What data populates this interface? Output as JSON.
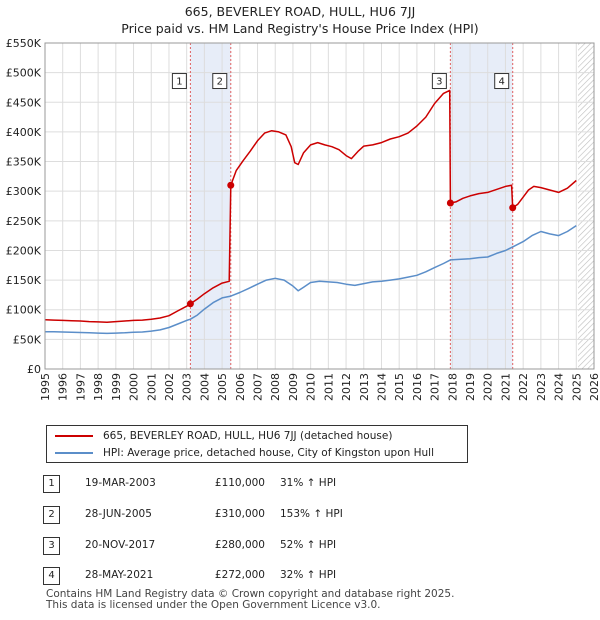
{
  "title_line1": "665, BEVERLEY ROAD, HULL, HU6 7JJ",
  "title_line2": "Price paid vs. HM Land Registry's House Price Index (HPI)",
  "colors": {
    "red": "#cc0000",
    "blue": "#5b8ec9",
    "band": "#dde6f5",
    "grid": "#dddddd"
  },
  "chart_data": {
    "type": "line",
    "x_range": [
      1995,
      2026
    ],
    "y_range": [
      0,
      550000
    ],
    "y_ticks": [
      {
        "v": 0,
        "label": "£0"
      },
      {
        "v": 50000,
        "label": "£50K"
      },
      {
        "v": 100000,
        "label": "£100K"
      },
      {
        "v": 150000,
        "label": "£150K"
      },
      {
        "v": 200000,
        "label": "£200K"
      },
      {
        "v": 250000,
        "label": "£250K"
      },
      {
        "v": 300000,
        "label": "£300K"
      },
      {
        "v": 350000,
        "label": "£350K"
      },
      {
        "v": 400000,
        "label": "£400K"
      },
      {
        "v": 450000,
        "label": "£450K"
      },
      {
        "v": 500000,
        "label": "£500K"
      },
      {
        "v": 550000,
        "label": "£550K"
      }
    ],
    "x_ticks": [
      "1995",
      "1996",
      "1997",
      "1998",
      "1999",
      "2000",
      "2001",
      "2002",
      "2003",
      "2004",
      "2005",
      "2006",
      "2007",
      "2008",
      "2009",
      "2010",
      "2011",
      "2012",
      "2013",
      "2014",
      "2015",
      "2016",
      "2017",
      "2018",
      "2019",
      "2020",
      "2021",
      "2022",
      "2023",
      "2024",
      "2025",
      "2026"
    ],
    "shaded_bands": [
      [
        2003.21,
        2005.49
      ],
      [
        2017.89,
        2021.41
      ]
    ],
    "future_hatch_from": 2025.1,
    "series": [
      {
        "name": "665, BEVERLEY ROAD, HULL, HU6 7JJ (detached house)",
        "color": "#cc0000",
        "points": [
          [
            1995.0,
            83000
          ],
          [
            1995.5,
            82500
          ],
          [
            1996.0,
            82000
          ],
          [
            1996.5,
            81500
          ],
          [
            1997.0,
            81000
          ],
          [
            1997.5,
            80000
          ],
          [
            1998.0,
            79500
          ],
          [
            1998.5,
            79000
          ],
          [
            1999.0,
            80000
          ],
          [
            1999.5,
            81000
          ],
          [
            2000.0,
            82000
          ],
          [
            2000.5,
            82500
          ],
          [
            2001.0,
            84000
          ],
          [
            2001.5,
            86000
          ],
          [
            2002.0,
            90000
          ],
          [
            2002.5,
            98000
          ],
          [
            2003.0,
            106000
          ],
          [
            2003.21,
            110000
          ],
          [
            2003.6,
            118000
          ],
          [
            2004.0,
            127000
          ],
          [
            2004.5,
            137000
          ],
          [
            2005.0,
            145000
          ],
          [
            2005.4,
            148000
          ],
          [
            2005.49,
            310000
          ],
          [
            2005.8,
            335000
          ],
          [
            2006.2,
            352000
          ],
          [
            2006.6,
            368000
          ],
          [
            2007.0,
            385000
          ],
          [
            2007.4,
            398000
          ],
          [
            2007.8,
            402000
          ],
          [
            2008.2,
            400000
          ],
          [
            2008.6,
            395000
          ],
          [
            2008.9,
            375000
          ],
          [
            2009.1,
            348000
          ],
          [
            2009.3,
            345000
          ],
          [
            2009.6,
            365000
          ],
          [
            2010.0,
            378000
          ],
          [
            2010.4,
            382000
          ],
          [
            2010.8,
            378000
          ],
          [
            2011.2,
            375000
          ],
          [
            2011.6,
            370000
          ],
          [
            2012.0,
            360000
          ],
          [
            2012.3,
            355000
          ],
          [
            2012.7,
            368000
          ],
          [
            2013.0,
            376000
          ],
          [
            2013.5,
            378000
          ],
          [
            2014.0,
            382000
          ],
          [
            2014.5,
            388000
          ],
          [
            2015.0,
            392000
          ],
          [
            2015.5,
            398000
          ],
          [
            2016.0,
            410000
          ],
          [
            2016.5,
            425000
          ],
          [
            2017.0,
            448000
          ],
          [
            2017.5,
            465000
          ],
          [
            2017.85,
            470000
          ],
          [
            2017.89,
            280000
          ],
          [
            2018.2,
            282000
          ],
          [
            2018.6,
            288000
          ],
          [
            2019.0,
            292000
          ],
          [
            2019.5,
            296000
          ],
          [
            2020.0,
            298000
          ],
          [
            2020.5,
            303000
          ],
          [
            2021.0,
            308000
          ],
          [
            2021.35,
            310000
          ],
          [
            2021.41,
            272000
          ],
          [
            2021.7,
            278000
          ],
          [
            2022.0,
            290000
          ],
          [
            2022.3,
            302000
          ],
          [
            2022.6,
            308000
          ],
          [
            2023.0,
            306000
          ],
          [
            2023.5,
            302000
          ],
          [
            2024.0,
            298000
          ],
          [
            2024.5,
            305000
          ],
          [
            2025.0,
            318000
          ]
        ]
      },
      {
        "name": "HPI: Average price, detached house, City of Kingston upon Hull",
        "color": "#5b8ec9",
        "points": [
          [
            1995.0,
            63000
          ],
          [
            1995.5,
            62800
          ],
          [
            1996.0,
            62500
          ],
          [
            1996.5,
            62000
          ],
          [
            1997.0,
            61500
          ],
          [
            1997.5,
            61000
          ],
          [
            1998.0,
            60500
          ],
          [
            1998.5,
            60000
          ],
          [
            1999.0,
            60500
          ],
          [
            1999.5,
            61000
          ],
          [
            2000.0,
            62000
          ],
          [
            2000.5,
            62500
          ],
          [
            2001.0,
            64000
          ],
          [
            2001.5,
            66000
          ],
          [
            2002.0,
            70000
          ],
          [
            2002.5,
            76000
          ],
          [
            2003.0,
            82000
          ],
          [
            2003.21,
            84000
          ],
          [
            2003.6,
            91000
          ],
          [
            2004.0,
            101000
          ],
          [
            2004.5,
            112000
          ],
          [
            2005.0,
            120000
          ],
          [
            2005.49,
            123000
          ],
          [
            2006.0,
            129000
          ],
          [
            2006.5,
            136000
          ],
          [
            2007.0,
            143000
          ],
          [
            2007.5,
            150000
          ],
          [
            2008.0,
            153000
          ],
          [
            2008.5,
            150000
          ],
          [
            2009.0,
            140000
          ],
          [
            2009.3,
            132000
          ],
          [
            2009.6,
            138000
          ],
          [
            2010.0,
            146000
          ],
          [
            2010.5,
            148000
          ],
          [
            2011.0,
            147000
          ],
          [
            2011.5,
            146000
          ],
          [
            2012.0,
            143000
          ],
          [
            2012.5,
            141000
          ],
          [
            2013.0,
            144000
          ],
          [
            2013.5,
            147000
          ],
          [
            2014.0,
            148000
          ],
          [
            2014.5,
            150000
          ],
          [
            2015.0,
            152000
          ],
          [
            2015.5,
            155000
          ],
          [
            2016.0,
            158000
          ],
          [
            2016.5,
            164000
          ],
          [
            2017.0,
            171000
          ],
          [
            2017.5,
            178000
          ],
          [
            2017.89,
            184000
          ],
          [
            2018.5,
            185000
          ],
          [
            2019.0,
            186000
          ],
          [
            2019.5,
            188000
          ],
          [
            2020.0,
            189000
          ],
          [
            2020.5,
            195000
          ],
          [
            2021.0,
            200000
          ],
          [
            2021.41,
            206000
          ],
          [
            2022.0,
            215000
          ],
          [
            2022.5,
            225000
          ],
          [
            2023.0,
            232000
          ],
          [
            2023.5,
            228000
          ],
          [
            2024.0,
            225000
          ],
          [
            2024.5,
            232000
          ],
          [
            2025.0,
            242000
          ]
        ]
      }
    ],
    "markers": [
      {
        "id": "1",
        "x": 2003.21,
        "y": 110000
      },
      {
        "id": "2",
        "x": 2005.49,
        "y": 310000
      },
      {
        "id": "3",
        "x": 2017.89,
        "y": 280000
      },
      {
        "id": "4",
        "x": 2021.41,
        "y": 272000
      }
    ],
    "badge_level": 485000
  },
  "legend": {
    "red_label": "665, BEVERLEY ROAD, HULL, HU6 7JJ (detached house)",
    "blue_label": "HPI: Average price, detached house, City of Kingston upon Hull"
  },
  "transactions": [
    {
      "id": "1",
      "date": "19-MAR-2003",
      "price": "£110,000",
      "hpi": "31% ↑ HPI"
    },
    {
      "id": "2",
      "date": "28-JUN-2005",
      "price": "£310,000",
      "hpi": "153% ↑ HPI"
    },
    {
      "id": "3",
      "date": "20-NOV-2017",
      "price": "£280,000",
      "hpi": "52% ↑ HPI"
    },
    {
      "id": "4",
      "date": "28-MAY-2021",
      "price": "£272,000",
      "hpi": "32% ↑ HPI"
    }
  ],
  "footer_line1": "Contains HM Land Registry data © Crown copyright and database right 2025.",
  "footer_line2": "This data is licensed under the Open Government Licence v3.0."
}
